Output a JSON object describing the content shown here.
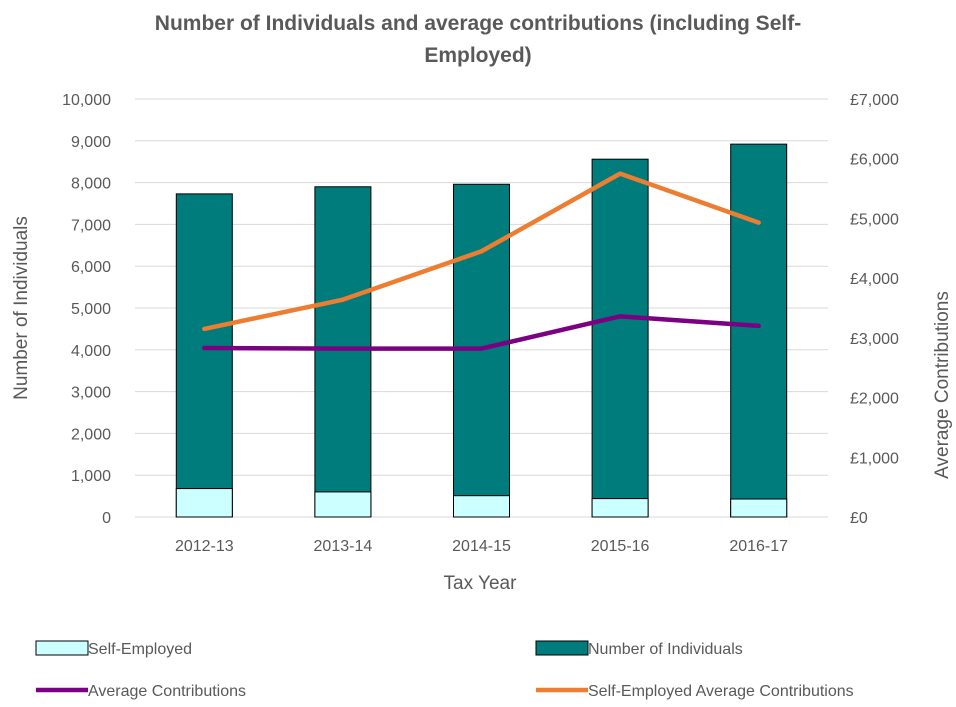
{
  "chart_data": {
    "type": "bar",
    "title_line1": "Number of Individuals and average contributions (including Self-",
    "title_line2": "Employed)",
    "xlabel": "Tax Year",
    "ylabel_left": "Number of Individuals",
    "ylabel_right": "Average Contributions",
    "categories": [
      "2012-13",
      "2013-14",
      "2014-15",
      "2015-16",
      "2016-17"
    ],
    "y_left": {
      "range": [
        0,
        10000
      ],
      "ticks": [
        0,
        1000,
        2000,
        3000,
        4000,
        5000,
        6000,
        7000,
        8000,
        9000,
        10000
      ],
      "tick_labels": [
        "0",
        "1,000",
        "2,000",
        "3,000",
        "4,000",
        "5,000",
        "6,000",
        "7,000",
        "8,000",
        "9,000",
        "10,000"
      ]
    },
    "y_right": {
      "range": [
        0,
        7000
      ],
      "ticks": [
        0,
        1000,
        2000,
        3000,
        4000,
        5000,
        6000,
        7000
      ],
      "tick_labels": [
        "£0",
        "£1,000",
        "£2,000",
        "£3,000",
        "£4,000",
        "£5,000",
        "£6,000",
        "£7,000"
      ]
    },
    "grid": true,
    "legend_position": "bottom",
    "series": [
      {
        "name": "Self-Employed",
        "kind": "bar",
        "axis": "left",
        "color": "#ccffff",
        "values": [
          680,
          600,
          510,
          440,
          430
        ]
      },
      {
        "name": "Number of Individuals",
        "kind": "bar",
        "axis": "left",
        "color": "#007c7c",
        "values": [
          7730,
          7900,
          7960,
          8560,
          8920
        ]
      },
      {
        "name": "Average Contributions",
        "kind": "line",
        "axis": "right",
        "color": "#7b0082",
        "values": [
          2830,
          2820,
          2820,
          3360,
          3200
        ]
      },
      {
        "name": "Self-Employed Average Contributions",
        "kind": "line",
        "axis": "right",
        "color": "#ed7d31",
        "values": [
          3150,
          3640,
          4450,
          5750,
          4930
        ]
      }
    ]
  }
}
